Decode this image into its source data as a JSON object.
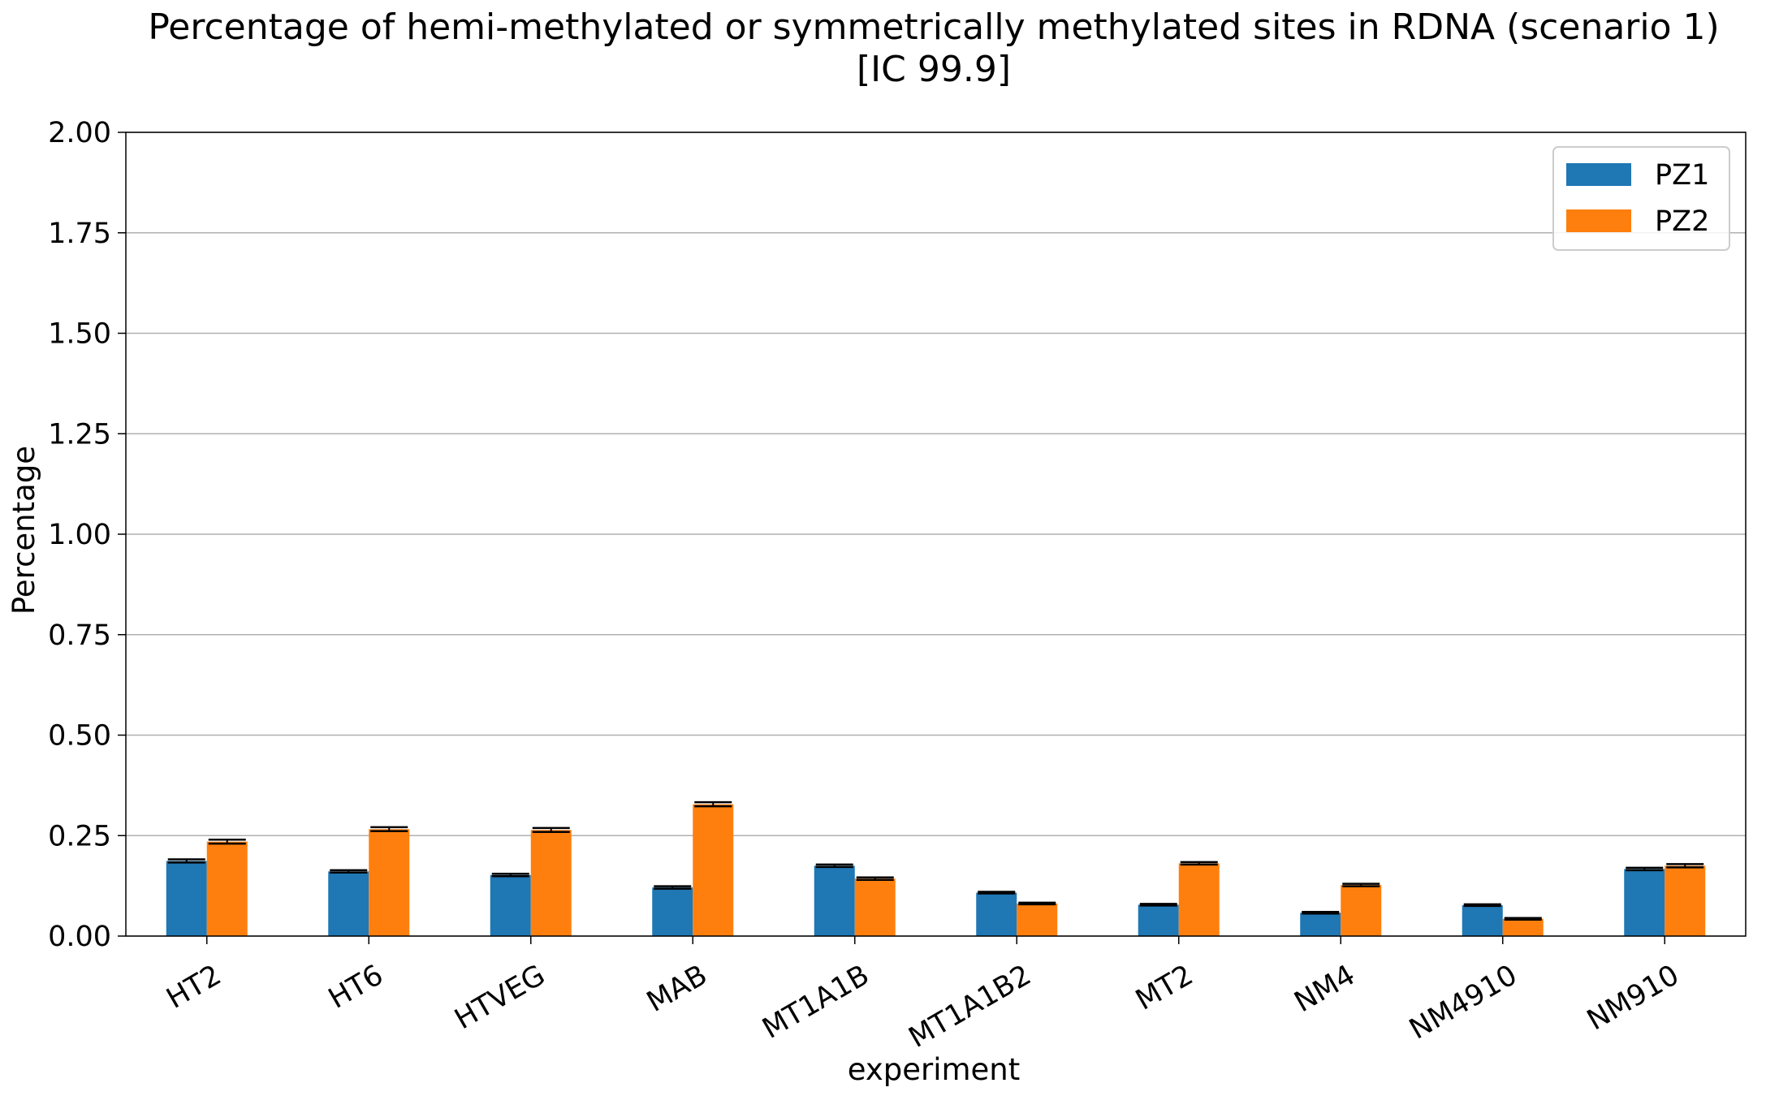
{
  "chart_data": {
    "type": "bar",
    "title": "Percentage of hemi-methylated or symmetrically methylated sites in RDNA (scenario 1)",
    "subtitle": "[IC 99.9]",
    "xlabel": "experiment",
    "ylabel": "Percentage",
    "ylim": [
      0,
      2.0
    ],
    "yticks": [
      "0.00",
      "0.25",
      "0.50",
      "0.75",
      "1.00",
      "1.25",
      "1.50",
      "1.75",
      "2.00"
    ],
    "grid": "horizontal",
    "legend_position": "top-right",
    "categories": [
      "HT2",
      "HT6",
      "HTVEG",
      "MAB",
      "MT1A1B",
      "MT1A1B2",
      "MT2",
      "NM4",
      "NM4910",
      "NM910"
    ],
    "series": [
      {
        "name": "PZ1",
        "color": "#1f77b4",
        "values": [
          0.187,
          0.161,
          0.152,
          0.121,
          0.175,
          0.108,
          0.078,
          0.058,
          0.077,
          0.167
        ],
        "error": [
          0.004,
          0.003,
          0.003,
          0.003,
          0.003,
          0.002,
          0.002,
          0.002,
          0.002,
          0.003
        ]
      },
      {
        "name": "PZ2",
        "color": "#ff7f0e",
        "values": [
          0.235,
          0.266,
          0.264,
          0.328,
          0.143,
          0.081,
          0.181,
          0.127,
          0.043,
          0.175
        ],
        "error": [
          0.005,
          0.005,
          0.005,
          0.005,
          0.003,
          0.002,
          0.003,
          0.003,
          0.002,
          0.004
        ]
      }
    ]
  }
}
